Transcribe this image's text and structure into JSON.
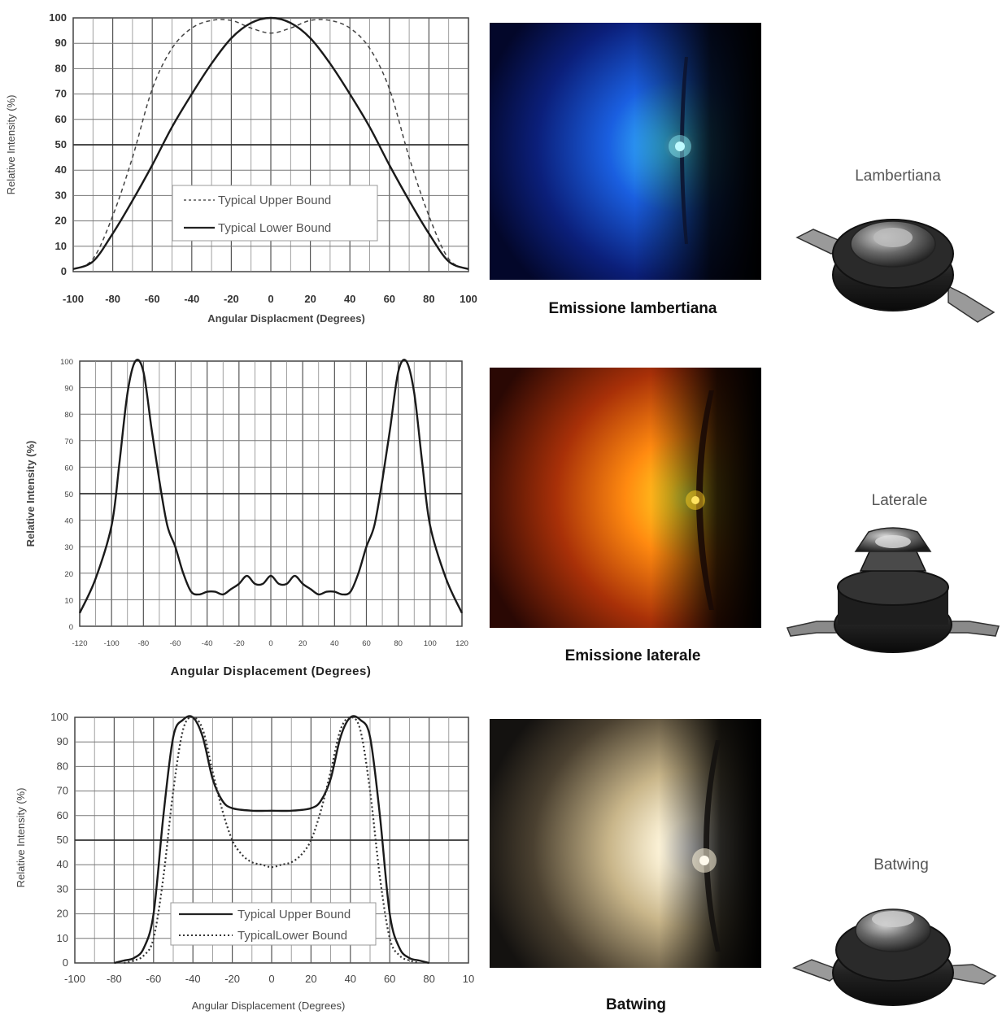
{
  "chart_data": [
    {
      "type": "line",
      "xlabel": "Angular Displacment (Degrees)",
      "ylabel": "Relative Intensity (%)",
      "xlim": [
        -100,
        100
      ],
      "ylim": [
        0,
        100
      ],
      "x_ticks": [
        "-100",
        "-80",
        "-60",
        "-40",
        "-20",
        "0",
        "20",
        "40",
        "60",
        "80",
        "100"
      ],
      "y_ticks": [
        "0",
        "10",
        "20",
        "30",
        "40",
        "50",
        "60",
        "70",
        "80",
        "90",
        "100"
      ],
      "grid": true,
      "legend_position": "center-bottom",
      "series": [
        {
          "name": "Typical Upper Bound",
          "style": "dashed",
          "x": [
            -100,
            -90,
            -80,
            -70,
            -60,
            -50,
            -40,
            -30,
            -20,
            -10,
            0,
            10,
            20,
            30,
            40,
            50,
            60,
            70,
            80,
            90,
            100
          ],
          "y": [
            1,
            5,
            22,
            45,
            72,
            88,
            96,
            99,
            99,
            96,
            94,
            96,
            99,
            99,
            96,
            88,
            72,
            45,
            22,
            5,
            1
          ]
        },
        {
          "name": "Typical Lower Bound",
          "style": "solid",
          "x": [
            -100,
            -90,
            -80,
            -70,
            -60,
            -50,
            -40,
            -30,
            -20,
            -10,
            0,
            10,
            20,
            30,
            40,
            50,
            60,
            70,
            80,
            90,
            100
          ],
          "y": [
            1,
            4,
            15,
            28,
            42,
            57,
            70,
            82,
            92,
            98,
            100,
            98,
            92,
            82,
            70,
            57,
            42,
            28,
            15,
            4,
            1
          ]
        }
      ]
    },
    {
      "type": "line",
      "xlabel": "Angular Displacement (Degrees)",
      "ylabel": "Relative Intensity (%)",
      "xlim": [
        -120,
        120
      ],
      "ylim": [
        0,
        100
      ],
      "x_ticks": [
        "-120",
        "-100",
        "-80",
        "-60",
        "-40",
        "-20",
        "0",
        "20",
        "40",
        "60",
        "80",
        "100",
        "120"
      ],
      "y_ticks": [
        "0",
        "10",
        "20",
        "30",
        "40",
        "50",
        "60",
        "70",
        "80",
        "90",
        "100"
      ],
      "grid": true,
      "series": [
        {
          "name": "",
          "style": "solid",
          "x": [
            -120,
            -110,
            -100,
            -95,
            -90,
            -85,
            -80,
            -75,
            -70,
            -65,
            -60,
            -55,
            -50,
            -45,
            -40,
            -35,
            -30,
            -25,
            -20,
            -15,
            -10,
            -5,
            0,
            5,
            10,
            15,
            20,
            25,
            30,
            35,
            40,
            45,
            50,
            55,
            60,
            65,
            70,
            75,
            80,
            85,
            90,
            95,
            100,
            110,
            120
          ],
          "y": [
            5,
            18,
            38,
            62,
            88,
            100,
            96,
            75,
            55,
            38,
            30,
            20,
            13,
            12,
            13,
            13,
            12,
            14,
            16,
            19,
            16,
            16,
            19,
            16,
            16,
            19,
            16,
            14,
            12,
            13,
            13,
            12,
            13,
            20,
            30,
            38,
            55,
            75,
            96,
            100,
            88,
            62,
            38,
            18,
            5
          ]
        }
      ]
    },
    {
      "type": "line",
      "xlabel": "Angular Displacement (Degrees)",
      "ylabel": "Relative Intensity (%)",
      "xlim": [
        -100,
        100
      ],
      "ylim": [
        0,
        100
      ],
      "x_ticks": [
        "-100",
        "-80",
        "-60",
        "-40",
        "-20",
        "0",
        "20",
        "40",
        "60",
        "80",
        "10"
      ],
      "y_ticks": [
        "0",
        "10",
        "20",
        "30",
        "40",
        "50",
        "60",
        "70",
        "80",
        "90",
        "100"
      ],
      "grid": true,
      "legend_position": "center-bottom",
      "series": [
        {
          "name": "Typical Upper Bound",
          "style": "solid",
          "x": [
            -80,
            -75,
            -70,
            -65,
            -60,
            -55,
            -50,
            -45,
            -40,
            -35,
            -30,
            -25,
            -20,
            -10,
            0,
            10,
            20,
            25,
            30,
            35,
            40,
            45,
            50,
            55,
            60,
            65,
            70,
            75,
            80
          ],
          "y": [
            0,
            1,
            2,
            6,
            20,
            60,
            92,
            99,
            100,
            92,
            75,
            66,
            63,
            62,
            62,
            62,
            63,
            66,
            75,
            92,
            100,
            99,
            92,
            60,
            20,
            6,
            2,
            1,
            0
          ]
        },
        {
          "name": "TypicalLower Bound",
          "style": "dotted",
          "x": [
            -75,
            -70,
            -65,
            -60,
            -55,
            -50,
            -45,
            -40,
            -35,
            -30,
            -25,
            -20,
            -15,
            -10,
            -5,
            0,
            5,
            10,
            15,
            20,
            25,
            30,
            35,
            40,
            45,
            50,
            55,
            60,
            65,
            70,
            75
          ],
          "y": [
            0,
            1,
            3,
            10,
            35,
            70,
            95,
            100,
            95,
            78,
            62,
            50,
            44,
            41,
            40,
            39,
            40,
            41,
            44,
            50,
            62,
            78,
            95,
            100,
            95,
            70,
            35,
            10,
            3,
            1,
            0
          ]
        }
      ]
    }
  ],
  "captions": [
    "Emissione lambertiana",
    "Emissione laterale",
    "Batwing"
  ],
  "led_names": [
    "Lambertiana",
    "Laterale",
    "Batwing"
  ],
  "colors": {
    "blue_glow": "#3fb0ff",
    "orange_glow": "#ff7a10",
    "warm_white_glow": "#fff5dc"
  }
}
